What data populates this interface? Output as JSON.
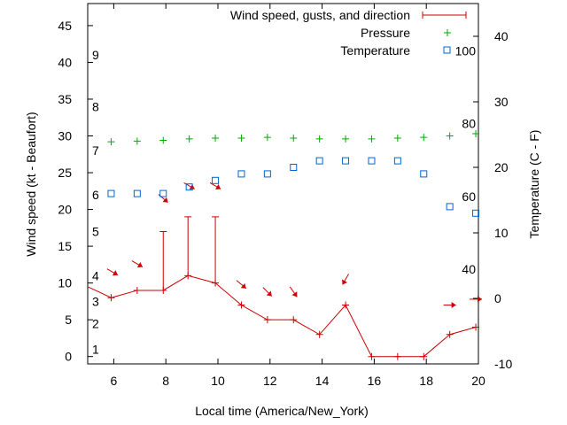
{
  "chart_data": {
    "type": "line",
    "xlabel": "Local time (America/New_York)",
    "ylabel_left": "Wind speed (kt - Beaufort)",
    "ylabel_right": "Temperature (C - F)",
    "xlim": [
      5,
      20
    ],
    "x_ticks": [
      6,
      8,
      10,
      12,
      14,
      16,
      18,
      20
    ],
    "wind_ylim": [
      -1,
      48
    ],
    "wind_ticks": [
      0,
      5,
      10,
      15,
      20,
      25,
      30,
      35,
      40,
      45
    ],
    "temp_c_ylim": [
      -10,
      45
    ],
    "temp_c_ticks": [
      -10,
      0,
      10,
      20,
      30,
      40
    ],
    "temp_f_labels": [
      {
        "label": "40",
        "c": 4.44
      },
      {
        "label": "60",
        "c": 15.56
      },
      {
        "label": "80",
        "c": 26.67
      },
      {
        "label": "100",
        "c": 37.78
      }
    ],
    "beaufort_labels": [
      {
        "label": "1",
        "kt": 1
      },
      {
        "label": "2",
        "kt": 4.5
      },
      {
        "label": "3",
        "kt": 7.5
      },
      {
        "label": "4",
        "kt": 11
      },
      {
        "label": "5",
        "kt": 17
      },
      {
        "label": "6",
        "kt": 22
      },
      {
        "label": "7",
        "kt": 28
      },
      {
        "label": "8",
        "kt": 34
      },
      {
        "label": "9",
        "kt": 41
      }
    ],
    "legend": {
      "placement": "top-right",
      "entries": [
        "Wind speed, gusts, and direction",
        "Pressure",
        "Temperature"
      ]
    },
    "series": [
      {
        "name": "Wind speed, gusts, and direction",
        "color": "#cc0000",
        "x": [
          5,
          5.9,
          6.9,
          7.9,
          8.85,
          9.9,
          10.9,
          11.9,
          12.9,
          13.9,
          14.9,
          15.9,
          16.9,
          17.9,
          18.9,
          19.9,
          20
        ],
        "values": [
          9.5,
          8,
          9,
          9,
          11,
          10,
          7,
          5,
          5,
          3,
          7,
          0,
          0,
          0,
          3,
          4,
          4
        ],
        "gusts": [
          null,
          null,
          null,
          17,
          19,
          19,
          null,
          null,
          null,
          null,
          null,
          null,
          null,
          null,
          null,
          null,
          null
        ],
        "direction_arrows": [
          {
            "x": 5.95,
            "y": 11.5,
            "deg": 30
          },
          {
            "x": 6.9,
            "y": 12.6,
            "deg": 30
          },
          {
            "x": 7.9,
            "y": 21.5,
            "deg": 40
          },
          {
            "x": 8.9,
            "y": 23.2,
            "deg": 30
          },
          {
            "x": 9.9,
            "y": 23.2,
            "deg": 30
          },
          {
            "x": 10.9,
            "y": 9.8,
            "deg": 40
          },
          {
            "x": 11.9,
            "y": 8.8,
            "deg": 45
          },
          {
            "x": 12.9,
            "y": 8.8,
            "deg": 55
          },
          {
            "x": 14.9,
            "y": 10.5,
            "deg": 120
          },
          {
            "x": 18.9,
            "y": 7.0,
            "deg": 0
          },
          {
            "x": 19.9,
            "y": 7.8,
            "deg": 0
          }
        ]
      },
      {
        "name": "Pressure",
        "color": "#00aa00",
        "x": [
          5.9,
          6.9,
          7.9,
          8.9,
          9.9,
          10.9,
          11.9,
          12.9,
          13.9,
          14.9,
          15.9,
          16.9,
          17.9,
          18.9,
          19.9
        ],
        "values": [
          29.2,
          29.3,
          29.4,
          29.6,
          29.7,
          29.7,
          29.8,
          29.7,
          29.6,
          29.6,
          29.6,
          29.7,
          29.8,
          30.0,
          30.3
        ]
      },
      {
        "name": "Temperature",
        "color": "#0066cc",
        "x": [
          5.9,
          6.9,
          7.9,
          8.9,
          9.9,
          10.9,
          11.9,
          12.9,
          13.9,
          14.9,
          15.9,
          16.9,
          17.9,
          18.9,
          19.9
        ],
        "values": [
          16.0,
          16.0,
          16.0,
          17.0,
          18.0,
          19.0,
          19.0,
          20.0,
          21.0,
          21.0,
          21.0,
          21.0,
          19.0,
          14.0,
          13.0
        ]
      }
    ]
  }
}
